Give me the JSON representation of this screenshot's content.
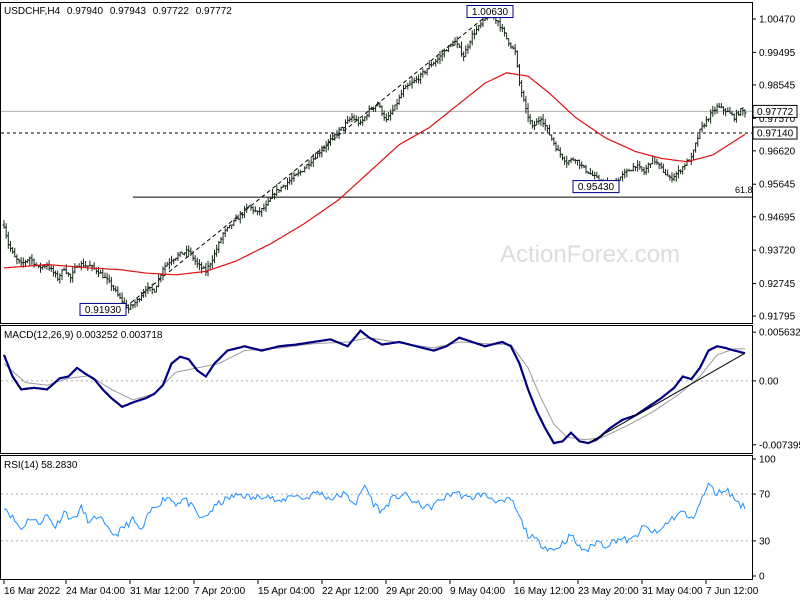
{
  "chart_data": [
    {
      "type": "candlestick-bar",
      "header": {
        "symbol": "USDCHF,H4",
        "open": "0.97940",
        "high": "0.97943",
        "low": "0.97722",
        "close": "0.97772"
      },
      "price_axis": {
        "min": 0.9168,
        "max": 1.0085,
        "ticks": [
          "1.00470",
          "0.99495",
          "0.98545",
          "0.97570",
          "0.96620",
          "0.95645",
          "0.94695",
          "0.93720",
          "0.92745",
          "0.91795"
        ],
        "current_price_label": "0.97772",
        "current_price": 0.97772,
        "level_label": "0.97140",
        "level": 0.9714
      },
      "support_level": {
        "value": 0.9527,
        "label": "61.8"
      },
      "annotations": [
        {
          "text": "1.00630",
          "value": 1.0063
        },
        {
          "text": "0.95430",
          "value": 0.9543
        },
        {
          "text": "0.91930",
          "value": 0.9193
        }
      ],
      "price_key_points": [
        [
          0,
          0.9445
        ],
        [
          2,
          0.939
        ],
        [
          5,
          0.935
        ],
        [
          8,
          0.933
        ],
        [
          12,
          0.935
        ],
        [
          16,
          0.932
        ],
        [
          20,
          0.933
        ],
        [
          25,
          0.929
        ],
        [
          28,
          0.932
        ],
        [
          31,
          0.929
        ],
        [
          34,
          0.933
        ],
        [
          36,
          0.933
        ],
        [
          40,
          0.9325
        ],
        [
          44,
          0.931
        ],
        [
          50,
          0.927
        ],
        [
          54,
          0.923
        ],
        [
          58,
          0.92
        ],
        [
          62,
          0.9225
        ],
        [
          66,
          0.926
        ],
        [
          70,
          0.9255
        ],
        [
          74,
          0.932
        ],
        [
          78,
          0.9345
        ],
        [
          82,
          0.936
        ],
        [
          86,
          0.937
        ],
        [
          90,
          0.933
        ],
        [
          94,
          0.931
        ],
        [
          98,
          0.936
        ],
        [
          102,
          0.942
        ],
        [
          108,
          0.946
        ],
        [
          114,
          0.95
        ],
        [
          118,
          0.948
        ],
        [
          122,
          0.95
        ],
        [
          126,
          0.954
        ],
        [
          132,
          0.957
        ],
        [
          138,
          0.96
        ],
        [
          144,
          0.964
        ],
        [
          150,
          0.968
        ],
        [
          156,
          0.972
        ],
        [
          162,
          0.976
        ],
        [
          166,
          0.974
        ],
        [
          170,
          0.978
        ],
        [
          174,
          0.98
        ],
        [
          178,
          0.975
        ],
        [
          182,
          0.979
        ],
        [
          186,
          0.984
        ],
        [
          190,
          0.986
        ],
        [
          194,
          0.988
        ],
        [
          198,
          0.991
        ],
        [
          202,
          0.993
        ],
        [
          206,
          0.996
        ],
        [
          210,
          0.998
        ],
        [
          214,
          0.994
        ],
        [
          218,
          1.0
        ],
        [
          222,
          1.003
        ],
        [
          226,
          1.0063
        ],
        [
          230,
          1.004
        ],
        [
          234,
          0.999
        ],
        [
          238,
          0.995
        ],
        [
          240,
          0.986
        ],
        [
          243,
          0.978
        ],
        [
          246,
          0.973
        ],
        [
          250,
          0.976
        ],
        [
          254,
          0.971
        ],
        [
          258,
          0.966
        ],
        [
          262,
          0.963
        ],
        [
          266,
          0.964
        ],
        [
          270,
          0.961
        ],
        [
          274,
          0.959
        ],
        [
          278,
          0.957
        ],
        [
          282,
          0.956
        ],
        [
          286,
          0.958
        ],
        [
          290,
          0.96
        ],
        [
          294,
          0.962
        ],
        [
          298,
          0.96
        ],
        [
          302,
          0.964
        ],
        [
          306,
          0.961
        ],
        [
          310,
          0.958
        ],
        [
          314,
          0.96
        ],
        [
          318,
          0.963
        ],
        [
          320,
          0.964
        ],
        [
          324,
          0.972
        ],
        [
          328,
          0.976
        ],
        [
          332,
          0.979
        ],
        [
          336,
          0.978
        ],
        [
          340,
          0.976
        ],
        [
          343,
          0.978
        ],
        [
          345,
          0.9777
        ]
      ],
      "ma_key_points": [
        [
          0,
          0.932
        ],
        [
          20,
          0.933
        ],
        [
          40,
          0.932
        ],
        [
          54,
          0.9315
        ],
        [
          66,
          0.9305
        ],
        [
          80,
          0.93
        ],
        [
          94,
          0.931
        ],
        [
          108,
          0.934
        ],
        [
          124,
          0.939
        ],
        [
          140,
          0.945
        ],
        [
          156,
          0.952
        ],
        [
          170,
          0.96
        ],
        [
          184,
          0.968
        ],
        [
          198,
          0.973
        ],
        [
          212,
          0.98
        ],
        [
          224,
          0.986
        ],
        [
          234,
          0.989
        ],
        [
          244,
          0.988
        ],
        [
          254,
          0.983
        ],
        [
          266,
          0.976
        ],
        [
          280,
          0.97
        ],
        [
          294,
          0.966
        ],
        [
          306,
          0.964
        ],
        [
          318,
          0.963
        ],
        [
          330,
          0.965
        ],
        [
          345,
          0.971
        ]
      ],
      "trendline": [
        [
          54,
          0.9193
        ],
        [
          226,
          1.0063
        ]
      ],
      "time_axis": [
        "16 Mar 2022",
        "24 Mar 04:00",
        "31 Mar 12:00",
        "7 Apr 20:00",
        "15 Apr 04:00",
        "22 Apr 12:00",
        "29 Apr 20:00",
        "9 May 04:00",
        "16 May 12:00",
        "23 May 20:00",
        "31 May 04:00",
        "7 Jun 12:00"
      ],
      "watermark": "ActionForex.com"
    },
    {
      "type": "line",
      "label": "MACD(12,26,9) 0.003252 0.003718",
      "axis": {
        "min": -0.008,
        "max": 0.006,
        "ticks": [
          "0.005632",
          "0.00",
          "-0.007395"
        ],
        "tick_values": [
          0.005632,
          0.0,
          -0.007395
        ]
      },
      "macd_key_points": [
        [
          0,
          0.003
        ],
        [
          4,
          0.0005
        ],
        [
          8,
          -0.001
        ],
        [
          14,
          -0.0008
        ],
        [
          20,
          -0.001
        ],
        [
          26,
          0.0003
        ],
        [
          30,
          0.0005
        ],
        [
          34,
          0.0015
        ],
        [
          38,
          0.0008
        ],
        [
          42,
          0.0002
        ],
        [
          46,
          -0.001
        ],
        [
          50,
          -0.002
        ],
        [
          55,
          -0.003
        ],
        [
          60,
          -0.0025
        ],
        [
          66,
          -0.002
        ],
        [
          70,
          -0.0015
        ],
        [
          74,
          -0.0005
        ],
        [
          78,
          0.002
        ],
        [
          82,
          0.0028
        ],
        [
          86,
          0.0025
        ],
        [
          90,
          0.0012
        ],
        [
          94,
          0.0005
        ],
        [
          98,
          0.002
        ],
        [
          104,
          0.0035
        ],
        [
          112,
          0.004
        ],
        [
          120,
          0.0035
        ],
        [
          128,
          0.004
        ],
        [
          136,
          0.0042
        ],
        [
          144,
          0.0045
        ],
        [
          152,
          0.0048
        ],
        [
          160,
          0.004
        ],
        [
          166,
          0.0058
        ],
        [
          170,
          0.005
        ],
        [
          176,
          0.0042
        ],
        [
          184,
          0.0045
        ],
        [
          192,
          0.004
        ],
        [
          200,
          0.0035
        ],
        [
          206,
          0.004
        ],
        [
          212,
          0.005
        ],
        [
          218,
          0.0045
        ],
        [
          224,
          0.004
        ],
        [
          232,
          0.0045
        ],
        [
          236,
          0.004
        ],
        [
          240,
          0.002
        ],
        [
          244,
          -0.001
        ],
        [
          248,
          -0.0035
        ],
        [
          252,
          -0.0055
        ],
        [
          256,
          -0.0072
        ],
        [
          260,
          -0.007
        ],
        [
          264,
          -0.006
        ],
        [
          268,
          -0.007
        ],
        [
          272,
          -0.0072
        ],
        [
          276,
          -0.0068
        ],
        [
          282,
          -0.0055
        ],
        [
          288,
          -0.0045
        ],
        [
          294,
          -0.004
        ],
        [
          300,
          -0.003
        ],
        [
          306,
          -0.002
        ],
        [
          312,
          -0.0008
        ],
        [
          316,
          0.0005
        ],
        [
          320,
          0.0002
        ],
        [
          324,
          0.0015
        ],
        [
          328,
          0.0035
        ],
        [
          332,
          0.004
        ],
        [
          336,
          0.0038
        ],
        [
          340,
          0.0035
        ],
        [
          345,
          0.0032
        ]
      ],
      "signal_key_points": [
        [
          0,
          0.002
        ],
        [
          10,
          -0.0002
        ],
        [
          20,
          -0.0005
        ],
        [
          30,
          0.0003
        ],
        [
          40,
          0.0006
        ],
        [
          50,
          -0.001
        ],
        [
          60,
          -0.0022
        ],
        [
          70,
          -0.0015
        ],
        [
          80,
          0.001
        ],
        [
          90,
          0.0015
        ],
        [
          100,
          0.002
        ],
        [
          112,
          0.0035
        ],
        [
          128,
          0.0038
        ],
        [
          144,
          0.0043
        ],
        [
          160,
          0.0045
        ],
        [
          170,
          0.005
        ],
        [
          184,
          0.0044
        ],
        [
          200,
          0.0038
        ],
        [
          212,
          0.0045
        ],
        [
          224,
          0.0043
        ],
        [
          236,
          0.0042
        ],
        [
          244,
          0.0015
        ],
        [
          250,
          -0.002
        ],
        [
          256,
          -0.005
        ],
        [
          262,
          -0.0065
        ],
        [
          270,
          -0.0068
        ],
        [
          278,
          -0.0066
        ],
        [
          290,
          -0.0052
        ],
        [
          302,
          -0.0036
        ],
        [
          314,
          -0.0016
        ],
        [
          324,
          0.0005
        ],
        [
          332,
          0.003
        ],
        [
          340,
          0.0037
        ],
        [
          345,
          0.0037
        ]
      ],
      "trendline": [
        [
          272,
          -0.0072
        ],
        [
          345,
          0.0032
        ]
      ]
    },
    {
      "type": "line",
      "label": "RSI(14) 58.2830",
      "axis": {
        "min": 0,
        "max": 100,
        "ticks": [
          "100",
          "70",
          "30",
          "0"
        ],
        "tick_values": [
          100,
          70,
          30,
          0
        ]
      },
      "rsi_key_points": [
        [
          0,
          60
        ],
        [
          4,
          50
        ],
        [
          8,
          40
        ],
        [
          12,
          50
        ],
        [
          16,
          45
        ],
        [
          20,
          52
        ],
        [
          24,
          42
        ],
        [
          28,
          55
        ],
        [
          32,
          48
        ],
        [
          36,
          58
        ],
        [
          40,
          45
        ],
        [
          44,
          52
        ],
        [
          48,
          40
        ],
        [
          52,
          35
        ],
        [
          56,
          42
        ],
        [
          60,
          48
        ],
        [
          64,
          38
        ],
        [
          68,
          55
        ],
        [
          72,
          62
        ],
        [
          76,
          68
        ],
        [
          80,
          62
        ],
        [
          84,
          66
        ],
        [
          88,
          58
        ],
        [
          92,
          48
        ],
        [
          96,
          55
        ],
        [
          100,
          62
        ],
        [
          104,
          66
        ],
        [
          110,
          70
        ],
        [
          116,
          66
        ],
        [
          122,
          70
        ],
        [
          128,
          62
        ],
        [
          134,
          70
        ],
        [
          140,
          66
        ],
        [
          146,
          72
        ],
        [
          152,
          66
        ],
        [
          158,
          70
        ],
        [
          164,
          62
        ],
        [
          168,
          78
        ],
        [
          172,
          62
        ],
        [
          176,
          55
        ],
        [
          180,
          65
        ],
        [
          186,
          70
        ],
        [
          192,
          62
        ],
        [
          198,
          58
        ],
        [
          204,
          66
        ],
        [
          210,
          72
        ],
        [
          216,
          66
        ],
        [
          222,
          70
        ],
        [
          228,
          66
        ],
        [
          232,
          62
        ],
        [
          236,
          66
        ],
        [
          240,
          50
        ],
        [
          244,
          35
        ],
        [
          248,
          30
        ],
        [
          252,
          25
        ],
        [
          256,
          22
        ],
        [
          260,
          28
        ],
        [
          264,
          35
        ],
        [
          268,
          24
        ],
        [
          272,
          22
        ],
        [
          276,
          30
        ],
        [
          280,
          26
        ],
        [
          286,
          32
        ],
        [
          292,
          30
        ],
        [
          298,
          42
        ],
        [
          304,
          36
        ],
        [
          310,
          48
        ],
        [
          316,
          55
        ],
        [
          320,
          48
        ],
        [
          324,
          62
        ],
        [
          328,
          78
        ],
        [
          332,
          70
        ],
        [
          336,
          75
        ],
        [
          340,
          66
        ],
        [
          345,
          58
        ]
      ]
    }
  ]
}
